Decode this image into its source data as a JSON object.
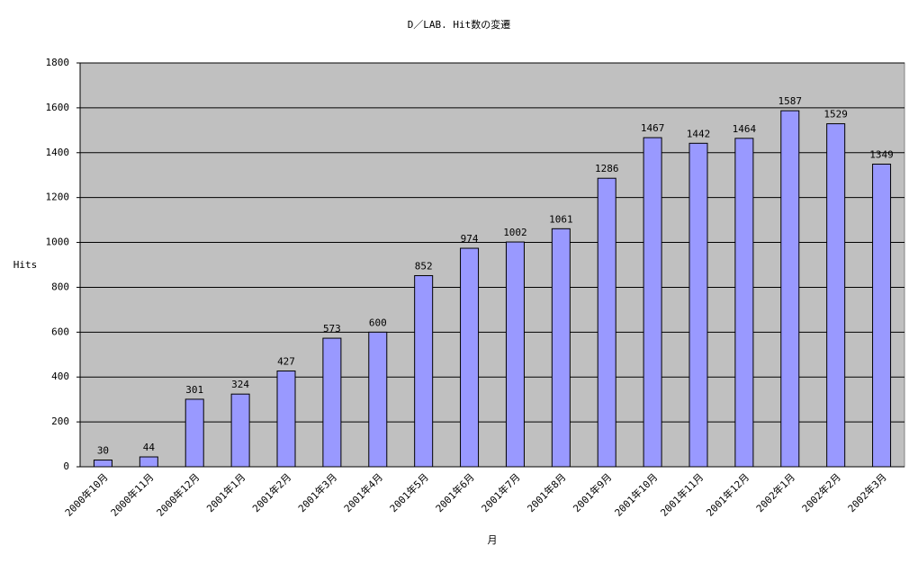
{
  "chart_data": {
    "type": "bar",
    "title": "D／LAB. Hit数の変遷",
    "y_label": "Hits",
    "x_label": "月",
    "categories": [
      "2000年10月",
      "2000年11月",
      "2000年12月",
      "2001年1月",
      "2001年2月",
      "2001年3月",
      "2001年4月",
      "2001年5月",
      "2001年6月",
      "2001年7月",
      "2001年8月",
      "2001年9月",
      "2001年10月",
      "2001年11月",
      "2001年12月",
      "2002年1月",
      "2002年2月",
      "2002年3月"
    ],
    "values": [
      30,
      44,
      301,
      324,
      427,
      573,
      600,
      852,
      974,
      1002,
      1061,
      1286,
      1467,
      1442,
      1464,
      1587,
      1529,
      1349
    ],
    "color": "#9999ff",
    "ylim": [
      0,
      1800
    ],
    "yticks": [
      0,
      200,
      400,
      600,
      800,
      1000,
      1200,
      1400,
      1600,
      1800
    ],
    "grid": true
  }
}
